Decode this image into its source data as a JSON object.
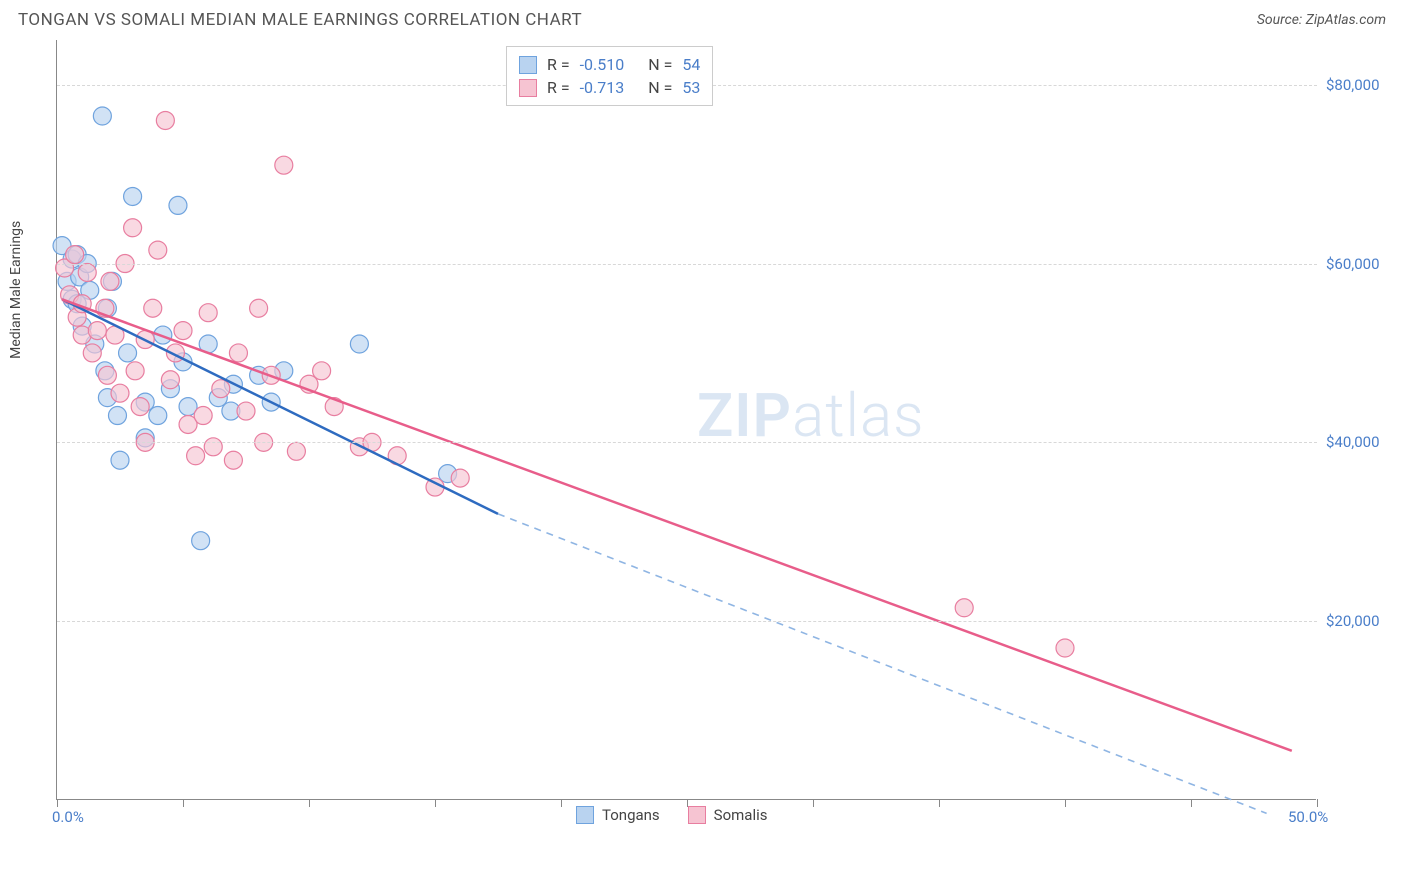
{
  "header": {
    "title": "TONGAN VS SOMALI MEDIAN MALE EARNINGS CORRELATION CHART",
    "source": "Source: ZipAtlas.com"
  },
  "watermark": {
    "part1": "ZIP",
    "part2": "atlas"
  },
  "chart": {
    "type": "scatter",
    "ylabel": "Median Male Earnings",
    "xlim": [
      0,
      50
    ],
    "ylim": [
      0,
      85000
    ],
    "xtick_positions": [
      0,
      5,
      10,
      15,
      20,
      25,
      30,
      35,
      40,
      45,
      50
    ],
    "xtick_labels": {
      "0": "0.0%",
      "50": "50.0%"
    },
    "ytick_positions": [
      20000,
      40000,
      60000,
      80000
    ],
    "ytick_labels": [
      "$20,000",
      "$40,000",
      "$60,000",
      "$80,000"
    ],
    "grid_color": "#d8d8d8",
    "background_color": "#ffffff",
    "axis_color": "#888888",
    "series": [
      {
        "name": "Tongans",
        "marker_fill": "#b9d3f0",
        "marker_stroke": "#6fa3de",
        "marker_fill_opacity": 0.65,
        "marker_radius": 9,
        "line_color": "#2e6bc0",
        "line_width": 2.5,
        "line_dash_color": "#8fb5e3",
        "trend_start": [
          0.2,
          56000
        ],
        "trend_solid_end": [
          17.5,
          32000
        ],
        "trend_dash_end": [
          48,
          -1500
        ],
        "R": "-0.510",
        "N": "54",
        "points": [
          [
            0.2,
            62000
          ],
          [
            0.4,
            58000
          ],
          [
            0.6,
            60500
          ],
          [
            0.6,
            56000
          ],
          [
            0.8,
            61000
          ],
          [
            0.8,
            55500
          ],
          [
            0.9,
            58500
          ],
          [
            1.0,
            53000
          ],
          [
            1.2,
            60000
          ],
          [
            1.3,
            57000
          ],
          [
            1.5,
            51000
          ],
          [
            1.8,
            76500
          ],
          [
            1.9,
            48000
          ],
          [
            2.0,
            55000
          ],
          [
            2.0,
            45000
          ],
          [
            2.2,
            58000
          ],
          [
            2.4,
            43000
          ],
          [
            2.5,
            38000
          ],
          [
            2.8,
            50000
          ],
          [
            3.0,
            67500
          ],
          [
            3.5,
            44500
          ],
          [
            3.5,
            40500
          ],
          [
            4.0,
            43000
          ],
          [
            4.2,
            52000
          ],
          [
            4.5,
            46000
          ],
          [
            4.8,
            66500
          ],
          [
            5.0,
            49000
          ],
          [
            5.2,
            44000
          ],
          [
            5.7,
            29000
          ],
          [
            6.0,
            51000
          ],
          [
            6.4,
            45000
          ],
          [
            6.9,
            43500
          ],
          [
            7.0,
            46500
          ],
          [
            8.0,
            47500
          ],
          [
            8.5,
            44500
          ],
          [
            9.0,
            48000
          ],
          [
            12.0,
            51000
          ],
          [
            15.5,
            36500
          ]
        ]
      },
      {
        "name": "Somalis",
        "marker_fill": "#f6c4d2",
        "marker_stroke": "#e87ea0",
        "marker_fill_opacity": 0.65,
        "marker_radius": 9,
        "line_color": "#e85d8a",
        "line_width": 2.5,
        "trend_start": [
          0.2,
          56000
        ],
        "trend_solid_end": [
          49,
          5500
        ],
        "R": "-0.713",
        "N": "53",
        "points": [
          [
            0.3,
            59500
          ],
          [
            0.5,
            56500
          ],
          [
            0.7,
            61000
          ],
          [
            0.8,
            54000
          ],
          [
            1.0,
            55500
          ],
          [
            1.0,
            52000
          ],
          [
            1.2,
            59000
          ],
          [
            1.4,
            50000
          ],
          [
            1.6,
            52500
          ],
          [
            1.9,
            55000
          ],
          [
            2.0,
            47500
          ],
          [
            2.1,
            58000
          ],
          [
            2.3,
            52000
          ],
          [
            2.5,
            45500
          ],
          [
            2.7,
            60000
          ],
          [
            3.0,
            64000
          ],
          [
            3.1,
            48000
          ],
          [
            3.3,
            44000
          ],
          [
            3.5,
            51500
          ],
          [
            3.5,
            40000
          ],
          [
            3.8,
            55000
          ],
          [
            4.0,
            61500
          ],
          [
            4.3,
            76000
          ],
          [
            4.5,
            47000
          ],
          [
            4.7,
            50000
          ],
          [
            5.0,
            52500
          ],
          [
            5.2,
            42000
          ],
          [
            5.5,
            38500
          ],
          [
            5.8,
            43000
          ],
          [
            6.0,
            54500
          ],
          [
            6.2,
            39500
          ],
          [
            6.5,
            46000
          ],
          [
            7.0,
            38000
          ],
          [
            7.2,
            50000
          ],
          [
            7.5,
            43500
          ],
          [
            8.0,
            55000
          ],
          [
            8.2,
            40000
          ],
          [
            8.5,
            47500
          ],
          [
            9.0,
            71000
          ],
          [
            9.5,
            39000
          ],
          [
            10.0,
            46500
          ],
          [
            10.5,
            48000
          ],
          [
            11.0,
            44000
          ],
          [
            12.0,
            39500
          ],
          [
            12.5,
            40000
          ],
          [
            13.5,
            38500
          ],
          [
            15.0,
            35000
          ],
          [
            16.0,
            36000
          ],
          [
            36.0,
            21500
          ],
          [
            40.0,
            17000
          ]
        ]
      }
    ],
    "stats_legend": {
      "label_R": "R =",
      "label_N": "N ="
    }
  }
}
